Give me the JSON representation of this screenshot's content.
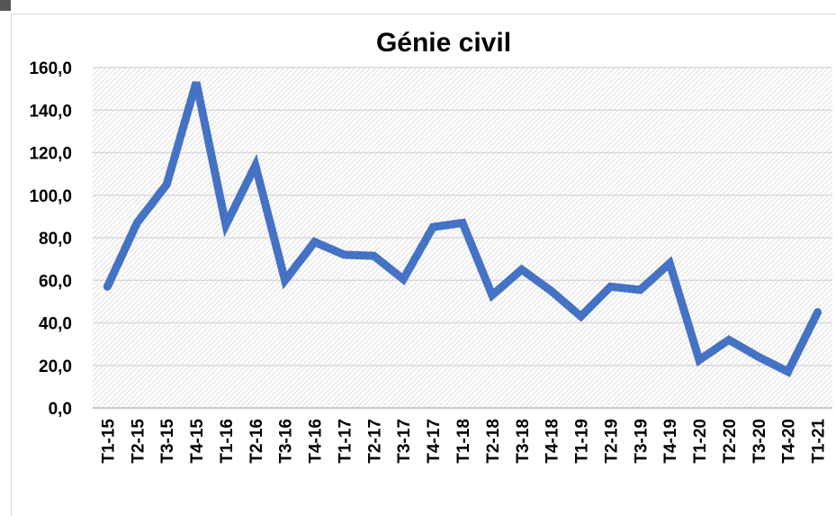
{
  "chart_data": {
    "type": "line",
    "title": "Génie civil",
    "categories": [
      "T1-15",
      "T2-15",
      "T3-15",
      "T4-15",
      "T1-16",
      "T2-16",
      "T3-16",
      "T4-16",
      "T1-17",
      "T2-17",
      "T3-17",
      "T4-17",
      "T1-18",
      "T2-18",
      "T3-18",
      "T4-18",
      "T1-19",
      "T2-19",
      "T3-19",
      "T4-19",
      "T1-20",
      "T2-20",
      "T3-20",
      "T4-20",
      "T1-21"
    ],
    "values": [
      57,
      87,
      105,
      153,
      86,
      114,
      60,
      78,
      72,
      71.5,
      60.5,
      85,
      87,
      53,
      65,
      55,
      43,
      57,
      55.5,
      68,
      22.5,
      32,
      24,
      17,
      45
    ],
    "color": "#4472c4",
    "ylim": [
      0,
      160
    ],
    "yticks": [
      {
        "value": 0,
        "label": "0,0"
      },
      {
        "value": 20,
        "label": "20,0"
      },
      {
        "value": 40,
        "label": "40,0"
      },
      {
        "value": 60,
        "label": "60,0"
      },
      {
        "value": 80,
        "label": "80,0"
      },
      {
        "value": 100,
        "label": "100,0"
      },
      {
        "value": 120,
        "label": "120,0"
      },
      {
        "value": 140,
        "label": "140,0"
      },
      {
        "value": 160,
        "label": "160,0"
      }
    ],
    "grid": true
  }
}
